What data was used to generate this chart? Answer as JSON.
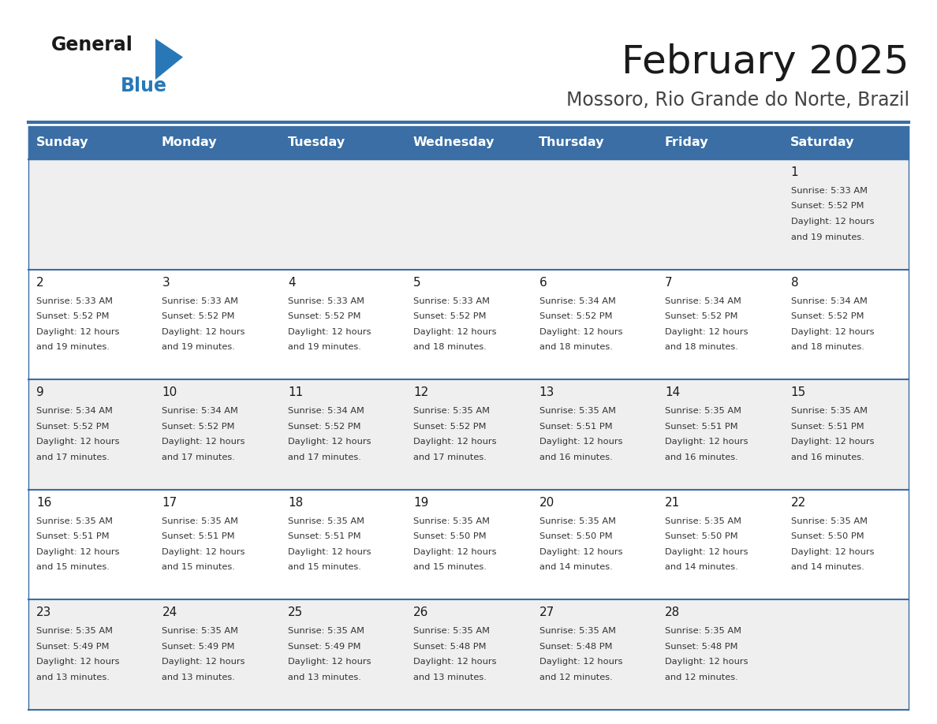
{
  "title": "February 2025",
  "subtitle": "Mossoro, Rio Grande do Norte, Brazil",
  "days_of_week": [
    "Sunday",
    "Monday",
    "Tuesday",
    "Wednesday",
    "Thursday",
    "Friday",
    "Saturday"
  ],
  "header_bg": "#3a6ea5",
  "header_text": "#ffffff",
  "cell_bg_odd": "#efefef",
  "cell_bg_even": "#ffffff",
  "cell_divider": "#3a6ea5",
  "title_color": "#1a1a1a",
  "subtitle_color": "#444444",
  "day_number_color": "#1a1a1a",
  "info_color": "#333333",
  "logo_general_color": "#1a1a1a",
  "logo_blue_color": "#2878b8",
  "logo_triangle_color": "#2878b8",
  "calendar_data": [
    [
      null,
      null,
      null,
      null,
      null,
      null,
      {
        "day": 1,
        "sunrise": "5:33 AM",
        "sunset": "5:52 PM",
        "daylight_line1": "Daylight: 12 hours",
        "daylight_line2": "and 19 minutes."
      }
    ],
    [
      {
        "day": 2,
        "sunrise": "5:33 AM",
        "sunset": "5:52 PM",
        "daylight_line1": "Daylight: 12 hours",
        "daylight_line2": "and 19 minutes."
      },
      {
        "day": 3,
        "sunrise": "5:33 AM",
        "sunset": "5:52 PM",
        "daylight_line1": "Daylight: 12 hours",
        "daylight_line2": "and 19 minutes."
      },
      {
        "day": 4,
        "sunrise": "5:33 AM",
        "sunset": "5:52 PM",
        "daylight_line1": "Daylight: 12 hours",
        "daylight_line2": "and 19 minutes."
      },
      {
        "day": 5,
        "sunrise": "5:33 AM",
        "sunset": "5:52 PM",
        "daylight_line1": "Daylight: 12 hours",
        "daylight_line2": "and 18 minutes."
      },
      {
        "day": 6,
        "sunrise": "5:34 AM",
        "sunset": "5:52 PM",
        "daylight_line1": "Daylight: 12 hours",
        "daylight_line2": "and 18 minutes."
      },
      {
        "day": 7,
        "sunrise": "5:34 AM",
        "sunset": "5:52 PM",
        "daylight_line1": "Daylight: 12 hours",
        "daylight_line2": "and 18 minutes."
      },
      {
        "day": 8,
        "sunrise": "5:34 AM",
        "sunset": "5:52 PM",
        "daylight_line1": "Daylight: 12 hours",
        "daylight_line2": "and 18 minutes."
      }
    ],
    [
      {
        "day": 9,
        "sunrise": "5:34 AM",
        "sunset": "5:52 PM",
        "daylight_line1": "Daylight: 12 hours",
        "daylight_line2": "and 17 minutes."
      },
      {
        "day": 10,
        "sunrise": "5:34 AM",
        "sunset": "5:52 PM",
        "daylight_line1": "Daylight: 12 hours",
        "daylight_line2": "and 17 minutes."
      },
      {
        "day": 11,
        "sunrise": "5:34 AM",
        "sunset": "5:52 PM",
        "daylight_line1": "Daylight: 12 hours",
        "daylight_line2": "and 17 minutes."
      },
      {
        "day": 12,
        "sunrise": "5:35 AM",
        "sunset": "5:52 PM",
        "daylight_line1": "Daylight: 12 hours",
        "daylight_line2": "and 17 minutes."
      },
      {
        "day": 13,
        "sunrise": "5:35 AM",
        "sunset": "5:51 PM",
        "daylight_line1": "Daylight: 12 hours",
        "daylight_line2": "and 16 minutes."
      },
      {
        "day": 14,
        "sunrise": "5:35 AM",
        "sunset": "5:51 PM",
        "daylight_line1": "Daylight: 12 hours",
        "daylight_line2": "and 16 minutes."
      },
      {
        "day": 15,
        "sunrise": "5:35 AM",
        "sunset": "5:51 PM",
        "daylight_line1": "Daylight: 12 hours",
        "daylight_line2": "and 16 minutes."
      }
    ],
    [
      {
        "day": 16,
        "sunrise": "5:35 AM",
        "sunset": "5:51 PM",
        "daylight_line1": "Daylight: 12 hours",
        "daylight_line2": "and 15 minutes."
      },
      {
        "day": 17,
        "sunrise": "5:35 AM",
        "sunset": "5:51 PM",
        "daylight_line1": "Daylight: 12 hours",
        "daylight_line2": "and 15 minutes."
      },
      {
        "day": 18,
        "sunrise": "5:35 AM",
        "sunset": "5:51 PM",
        "daylight_line1": "Daylight: 12 hours",
        "daylight_line2": "and 15 minutes."
      },
      {
        "day": 19,
        "sunrise": "5:35 AM",
        "sunset": "5:50 PM",
        "daylight_line1": "Daylight: 12 hours",
        "daylight_line2": "and 15 minutes."
      },
      {
        "day": 20,
        "sunrise": "5:35 AM",
        "sunset": "5:50 PM",
        "daylight_line1": "Daylight: 12 hours",
        "daylight_line2": "and 14 minutes."
      },
      {
        "day": 21,
        "sunrise": "5:35 AM",
        "sunset": "5:50 PM",
        "daylight_line1": "Daylight: 12 hours",
        "daylight_line2": "and 14 minutes."
      },
      {
        "day": 22,
        "sunrise": "5:35 AM",
        "sunset": "5:50 PM",
        "daylight_line1": "Daylight: 12 hours",
        "daylight_line2": "and 14 minutes."
      }
    ],
    [
      {
        "day": 23,
        "sunrise": "5:35 AM",
        "sunset": "5:49 PM",
        "daylight_line1": "Daylight: 12 hours",
        "daylight_line2": "and 13 minutes."
      },
      {
        "day": 24,
        "sunrise": "5:35 AM",
        "sunset": "5:49 PM",
        "daylight_line1": "Daylight: 12 hours",
        "daylight_line2": "and 13 minutes."
      },
      {
        "day": 25,
        "sunrise": "5:35 AM",
        "sunset": "5:49 PM",
        "daylight_line1": "Daylight: 12 hours",
        "daylight_line2": "and 13 minutes."
      },
      {
        "day": 26,
        "sunrise": "5:35 AM",
        "sunset": "5:48 PM",
        "daylight_line1": "Daylight: 12 hours",
        "daylight_line2": "and 13 minutes."
      },
      {
        "day": 27,
        "sunrise": "5:35 AM",
        "sunset": "5:48 PM",
        "daylight_line1": "Daylight: 12 hours",
        "daylight_line2": "and 12 minutes."
      },
      {
        "day": 28,
        "sunrise": "5:35 AM",
        "sunset": "5:48 PM",
        "daylight_line1": "Daylight: 12 hours",
        "daylight_line2": "and 12 minutes."
      },
      null
    ]
  ]
}
